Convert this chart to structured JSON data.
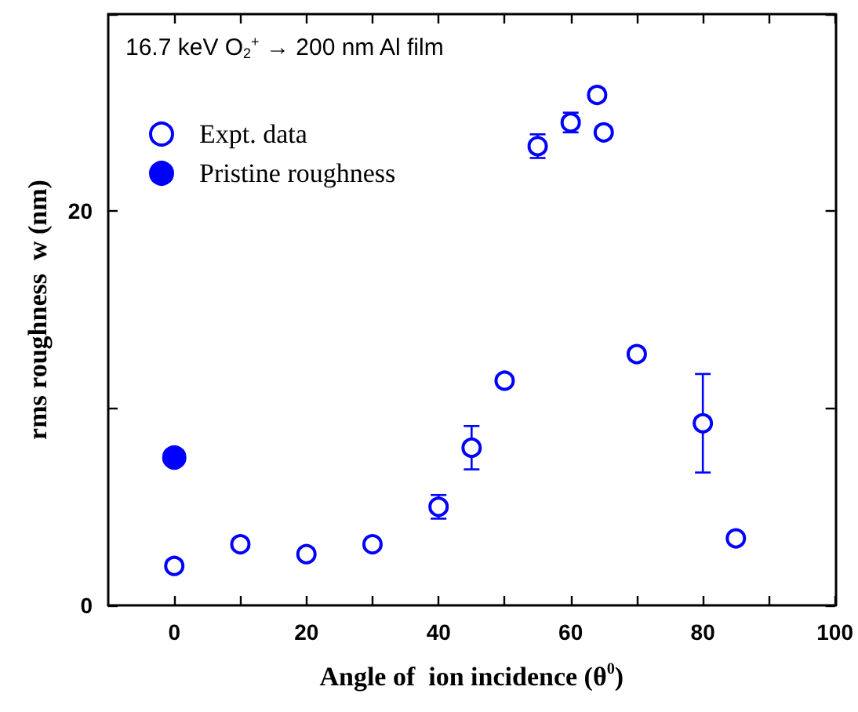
{
  "chart_data": {
    "type": "scatter",
    "xlabel": "Angle of  ion incidence (θ$^{0}$)",
    "ylabel": "rms roughness  w (nm)",
    "annotations": [
      "16.7 keV O$_{2}$$^{+}$ → 200 nm Al film"
    ],
    "xlim": [
      -10,
      100
    ],
    "xticks": [
      0,
      {
        "value": 10,
        "label": null
      },
      20,
      {
        "value": 30,
        "label": null
      },
      40,
      {
        "value": 50,
        "label": null
      },
      60,
      {
        "value": 70,
        "label": null
      },
      80,
      {
        "value": 90,
        "label": null
      },
      100
    ],
    "ylim": [
      0,
      30
    ],
    "yticks": [
      0,
      {
        "value": 10,
        "label": null
      },
      20,
      {
        "value": 30,
        "label": null
      }
    ],
    "legend": "top left",
    "grid": false,
    "marker": "circle",
    "series": [
      {
        "name": "Expt. data",
        "color": "#0000ff",
        "x": [
          0,
          10,
          20,
          30,
          40,
          45,
          50,
          55,
          60,
          64,
          65,
          70,
          80,
          85
        ],
        "values": [
          2.0,
          3.1,
          2.6,
          3.1,
          5.0,
          8.0,
          11.4,
          23.3,
          24.5,
          25.9,
          24.0,
          12.75,
          9.24,
          3.4
        ],
        "errors": [
          0.2,
          0.2,
          0.2,
          0.2,
          0.6,
          1.1,
          0.2,
          0.6,
          0.5,
          0.3,
          0.3,
          0.3,
          2.5,
          0.2
        ]
      },
      {
        "name": "Pristine roughness",
        "color": "#0000ff",
        "x": [
          0
        ],
        "values": [
          7.5
        ]
      }
    ]
  }
}
